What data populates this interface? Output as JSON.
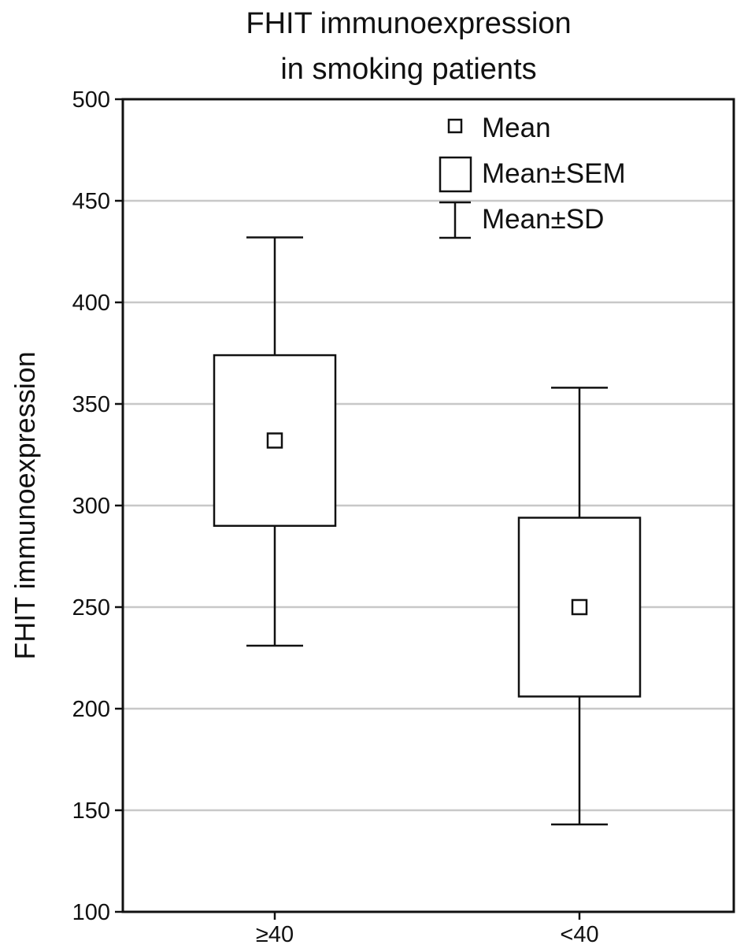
{
  "chart_data": {
    "type": "box",
    "title_lines": [
      "FHIT immunoexpression",
      "in smoking patients"
    ],
    "xlabel": "",
    "ylabel": "FHIT immunoexpression",
    "ylim": [
      100,
      500
    ],
    "yticks": [
      100,
      150,
      200,
      250,
      300,
      350,
      400,
      450,
      500
    ],
    "categories": [
      "≥40",
      "<40"
    ],
    "grid": true,
    "legend": {
      "position": "top-right",
      "entries": [
        {
          "marker": "small-square",
          "label": "Mean"
        },
        {
          "marker": "box",
          "label": "Mean±SEM"
        },
        {
          "marker": "whisker",
          "label": "Mean±SD"
        }
      ]
    },
    "series": [
      {
        "category": "≥40",
        "mean": 332,
        "sem_low": 290,
        "sem_high": 374,
        "sd_low": 231,
        "sd_high": 432
      },
      {
        "category": "<40",
        "mean": 250,
        "sem_low": 206,
        "sem_high": 294,
        "sd_low": 143,
        "sd_high": 358
      }
    ]
  }
}
